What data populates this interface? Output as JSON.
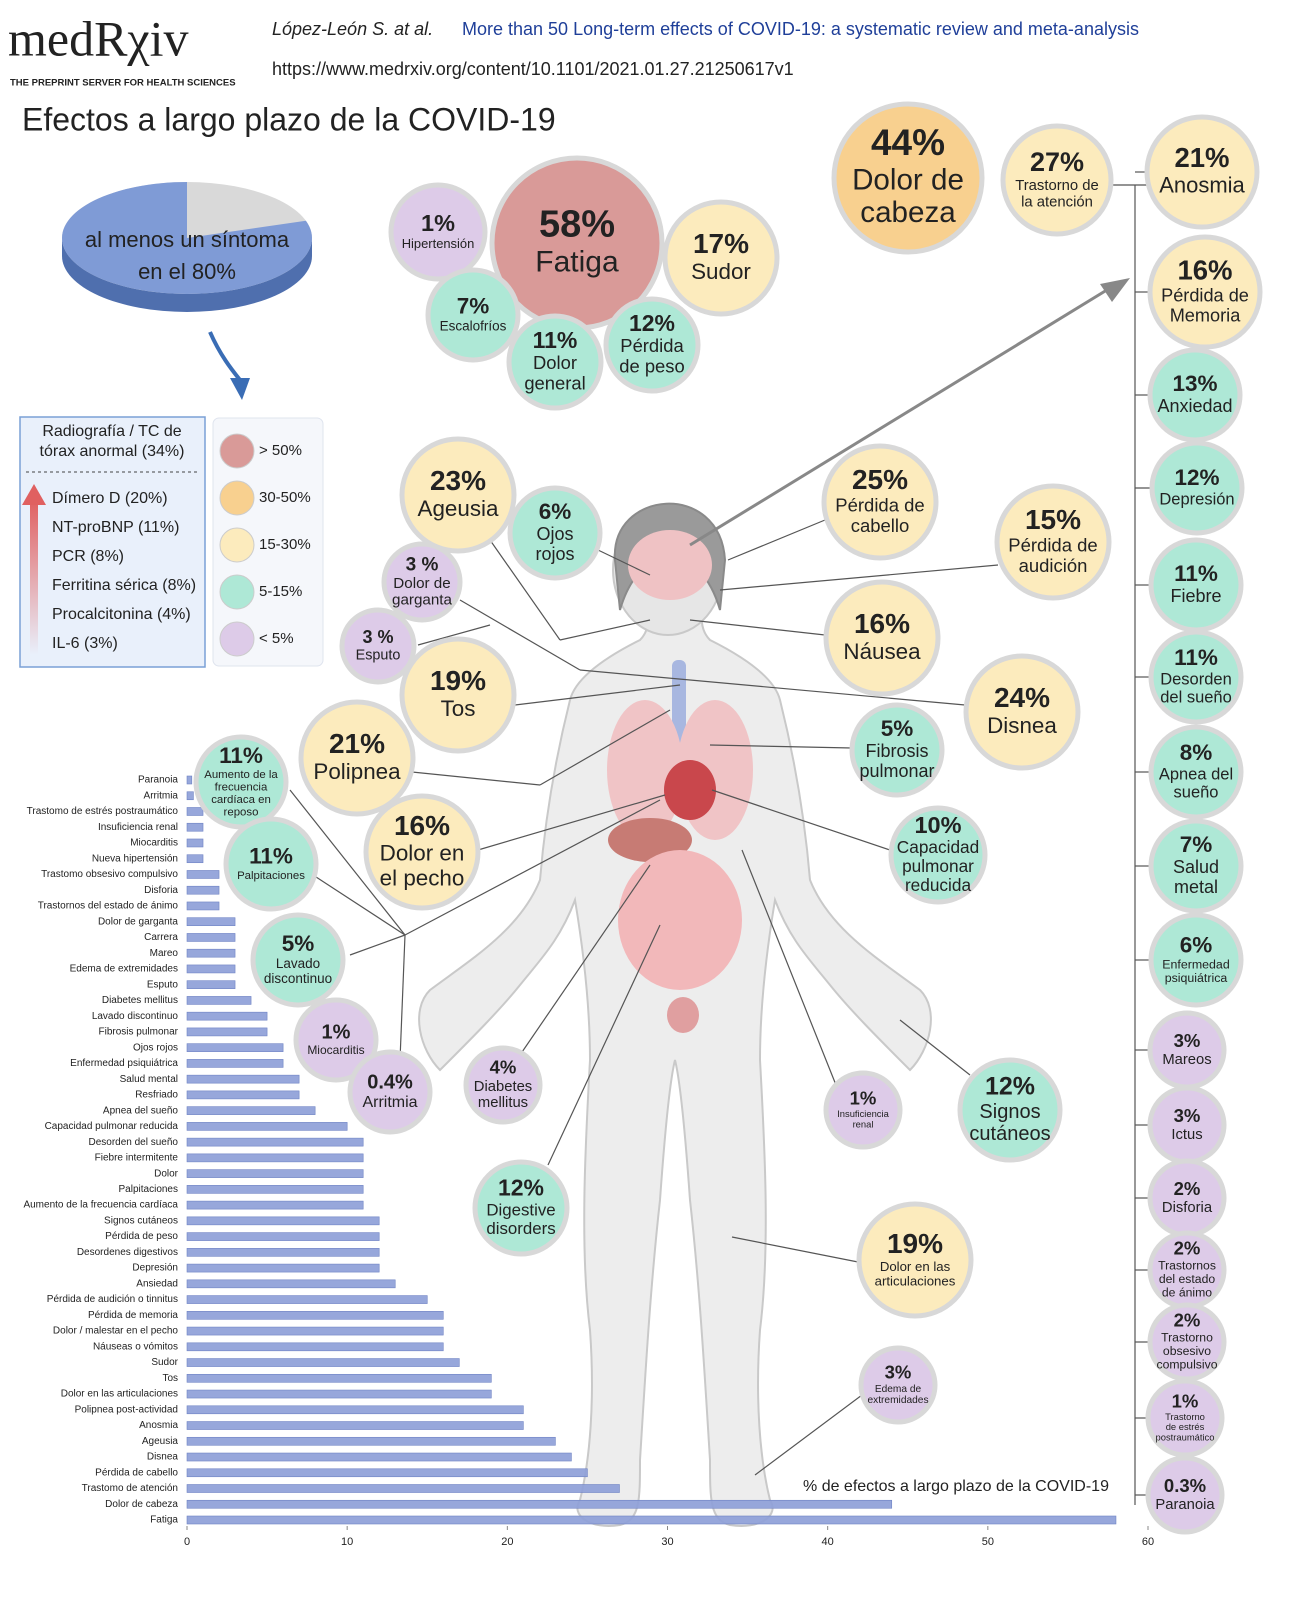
{
  "header": {
    "logo": "medRχiv",
    "tagline": "THE PREPRINT SERVER FOR HEALTH SCIENCES",
    "authors": "López-León S. at al.",
    "paper_title": "More than 50 Long-term effects of COVID-19: a systematic review and meta-analysis",
    "url": "https://www.medrxiv.org/content/10.1101/2021.01.27.21250617v1"
  },
  "title": "Efectos a largo plazo de la COVID-19",
  "pie": {
    "lines": [
      "al menos un síntoma",
      "en el 80%"
    ],
    "value": 80,
    "color": "#7f9bd6",
    "rest_color": "#d9d9d9"
  },
  "lab_box": {
    "header": [
      "Radiografía / TC de",
      "tórax anormal (34%)"
    ],
    "items": [
      "Dímero D (20%)",
      "NT-proBNP (11%)",
      "PCR (8%)",
      "Ferritina sérica (8%)",
      "Procalcitonina (4%)",
      "IL-6 (3%)"
    ]
  },
  "legend": [
    {
      "label": "> 50%",
      "color": "#d99a98"
    },
    {
      "label": "30-50%",
      "color": "#f8d08f"
    },
    {
      "label": "15-30%",
      "color": "#fcebbd"
    },
    {
      "label": "5-15%",
      "color": "#aee8d6"
    },
    {
      "label": "< 5%",
      "color": "#ddcbe8"
    }
  ],
  "bubbles": [
    {
      "pct": "58%",
      "lines": [
        "Fatiga"
      ],
      "color": "#d99a98"
    },
    {
      "pct": "44%",
      "lines": [
        "Dolor de",
        "cabeza"
      ],
      "color": "#f8d08f"
    },
    {
      "pct": "27%",
      "lines": [
        "Trastorno de",
        "la atención"
      ],
      "color": "#fcebbd"
    },
    {
      "pct": "21%",
      "lines": [
        "Anosmia"
      ],
      "color": "#fcebbd"
    },
    {
      "pct": "16%",
      "lines": [
        "Pérdida de",
        "Memoria"
      ],
      "color": "#fcebbd"
    },
    {
      "pct": "1%",
      "lines": [
        "Hipertensión"
      ],
      "color": "#ddcbe8"
    },
    {
      "pct": "17%",
      "lines": [
        "Sudor"
      ],
      "color": "#fcebbd"
    },
    {
      "pct": "7%",
      "lines": [
        "Escalofríos"
      ],
      "color": "#aee8d6"
    },
    {
      "pct": "11%",
      "lines": [
        "Dolor",
        "general"
      ],
      "color": "#aee8d6"
    },
    {
      "pct": "12%",
      "lines": [
        "Pérdida",
        "de peso"
      ],
      "color": "#aee8d6"
    },
    {
      "pct": "13%",
      "lines": [
        "Anxiedad"
      ],
      "color": "#aee8d6"
    },
    {
      "pct": "23%",
      "lines": [
        "Ageusia"
      ],
      "color": "#fcebbd"
    },
    {
      "pct": "6%",
      "lines": [
        "Ojos",
        "rojos"
      ],
      "color": "#aee8d6"
    },
    {
      "pct": "25%",
      "lines": [
        "Pérdida de",
        "cabello"
      ],
      "color": "#fcebbd"
    },
    {
      "pct": "15%",
      "lines": [
        "Pérdida de",
        "audición"
      ],
      "color": "#fcebbd"
    },
    {
      "pct": "12%",
      "lines": [
        "Depresión"
      ],
      "color": "#aee8d6"
    },
    {
      "pct": "3 %",
      "lines": [
        "Dolor de",
        "garganta"
      ],
      "color": "#ddcbe8"
    },
    {
      "pct": "3 %",
      "lines": [
        "Esputo"
      ],
      "color": "#ddcbe8"
    },
    {
      "pct": "16%",
      "lines": [
        "Náusea"
      ],
      "color": "#fcebbd"
    },
    {
      "pct": "11%",
      "lines": [
        "Fiebre"
      ],
      "color": "#aee8d6"
    },
    {
      "pct": "19%",
      "lines": [
        "Tos"
      ],
      "color": "#fcebbd"
    },
    {
      "pct": "24%",
      "lines": [
        "Disnea"
      ],
      "color": "#fcebbd"
    },
    {
      "pct": "11%",
      "lines": [
        "Desorden",
        "del sueño"
      ],
      "color": "#aee8d6"
    },
    {
      "pct": "11%",
      "lines": [
        "Aumento de la",
        "frecuencia",
        "cardíaca en",
        "reposo"
      ],
      "color": "#aee8d6"
    },
    {
      "pct": "21%",
      "lines": [
        "Polipnea"
      ],
      "color": "#fcebbd"
    },
    {
      "pct": "5%",
      "lines": [
        "Fibrosis",
        "pulmonar"
      ],
      "color": "#aee8d6"
    },
    {
      "pct": "8%",
      "lines": [
        "Apnea del",
        "sueño"
      ],
      "color": "#aee8d6"
    },
    {
      "pct": "16%",
      "lines": [
        "Dolor en",
        "el pecho"
      ],
      "color": "#fcebbd"
    },
    {
      "pct": "11%",
      "lines": [
        "Palpitaciones"
      ],
      "color": "#aee8d6"
    },
    {
      "pct": "10%",
      "lines": [
        "Capacidad",
        "pulmonar",
        "reducida"
      ],
      "color": "#aee8d6"
    },
    {
      "pct": "7%",
      "lines": [
        "Salud",
        "metal"
      ],
      "color": "#aee8d6"
    },
    {
      "pct": "5%",
      "lines": [
        "Lavado",
        "discontinuo"
      ],
      "color": "#aee8d6"
    },
    {
      "pct": "6%",
      "lines": [
        "Enfermedad",
        "psiquiátrica"
      ],
      "color": "#aee8d6"
    },
    {
      "pct": "1%",
      "lines": [
        "Miocarditis"
      ],
      "color": "#ddcbe8"
    },
    {
      "pct": "0.4%",
      "lines": [
        "Arritmia"
      ],
      "color": "#ddcbe8"
    },
    {
      "pct": "4%",
      "lines": [
        "Diabetes",
        "mellitus"
      ],
      "color": "#ddcbe8"
    },
    {
      "pct": "1%",
      "lines": [
        "Insuficiencia",
        "renal"
      ],
      "color": "#ddcbe8"
    },
    {
      "pct": "12%",
      "lines": [
        "Signos",
        "cutáneos"
      ],
      "color": "#aee8d6"
    },
    {
      "pct": "3%",
      "lines": [
        "Mareos"
      ],
      "color": "#ddcbe8"
    },
    {
      "pct": "3%",
      "lines": [
        "Ictus"
      ],
      "color": "#ddcbe8"
    },
    {
      "pct": "12%",
      "lines": [
        "Digestive",
        "disorders"
      ],
      "color": "#aee8d6"
    },
    {
      "pct": "2%",
      "lines": [
        "Disforia"
      ],
      "color": "#ddcbe8"
    },
    {
      "pct": "19%",
      "lines": [
        "Dolor en las",
        "articulaciones"
      ],
      "color": "#fcebbd"
    },
    {
      "pct": "2%",
      "lines": [
        "Trastornos",
        "del estado",
        "de ánimo"
      ],
      "color": "#ddcbe8"
    },
    {
      "pct": "2%",
      "lines": [
        "Trastorno",
        "obsesivo",
        "compulsivo"
      ],
      "color": "#ddcbe8"
    },
    {
      "pct": "3%",
      "lines": [
        "Edema de",
        "extremidades"
      ],
      "color": "#ddcbe8"
    },
    {
      "pct": "1%",
      "lines": [
        "Trastorno",
        "de estrés",
        "postraumático"
      ],
      "color": "#ddcbe8"
    },
    {
      "pct": "0.3%",
      "lines": [
        "Paranoia"
      ],
      "color": "#ddcbe8"
    }
  ],
  "chart_data": {
    "type": "hbar",
    "x_label": "% de efectos a largo plazo de la COVID-19",
    "categories": [
      "Paranoia",
      "Arritmia",
      "Trastomo de estrés postraumático",
      "Insuficiencia renal",
      "Miocarditis",
      "Nueva hipertensión",
      "Trastomo obsesivo compulsivo",
      "Disforia",
      "Trastornos del estado de ánimo",
      "Dolor de garganta",
      "Carrera",
      "Mareo",
      "Edema de extremidades",
      "Esputo",
      "Diabetes mellitus",
      "Lavado discontinuo",
      "Fibrosis pulmonar",
      "Ojos rojos",
      "Enfermedad psiquiátrica",
      "Salud mental",
      "Resfriado",
      "Apnea del sueño",
      "Capacidad pulmonar reducida",
      "Desorden del sueño",
      "Fiebre intermitente",
      "Dolor",
      "Palpitaciones",
      "Aumento de la frecuencia cardíaca",
      "Signos cutáneos",
      "Pérdida de peso",
      "Desordenes digestivos",
      "Depresión",
      "Ansiedad",
      "Pérdida de audición o tinnitus",
      "Pérdida de memoria",
      "Dolor / malestar en el pecho",
      "Náuseas o vómitos",
      "Sudor",
      "Tos",
      "Dolor en las articulaciones",
      "Polipnea post-actividad",
      "Anosmia",
      "Ageusia",
      "Disnea",
      "Pérdida de cabello",
      "Trastomo de atención",
      "Dolor de cabeza",
      "Fatiga"
    ],
    "values": [
      0.3,
      0.4,
      1,
      1,
      1,
      1,
      2,
      2,
      2,
      3,
      3,
      3,
      3,
      3,
      4,
      5,
      5,
      6,
      6,
      7,
      7,
      8,
      10,
      11,
      11,
      11,
      11,
      11,
      12,
      12,
      12,
      12,
      13,
      15,
      16,
      16,
      16,
      17,
      19,
      19,
      21,
      21,
      23,
      24,
      25,
      27,
      44,
      58
    ],
    "color": "#8ea0d8",
    "xlim": [
      0,
      60
    ],
    "xticks": [
      0,
      10,
      20,
      30,
      40,
      50,
      60
    ]
  }
}
